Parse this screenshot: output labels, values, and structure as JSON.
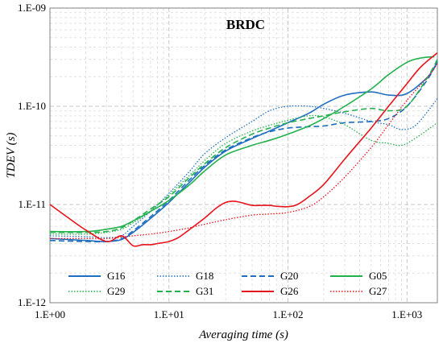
{
  "chart_data": {
    "type": "line",
    "title": "BRDC",
    "xlabel": "Averaging time (s)",
    "ylabel": "TDEV (s)",
    "xscale": "log",
    "yscale": "log",
    "xlim": [
      1,
      1800
    ],
    "ylim": [
      1e-12,
      1e-09
    ],
    "xticks": [
      {
        "value": 1,
        "label": "1.E+00"
      },
      {
        "value": 10,
        "label": "1.E+01"
      },
      {
        "value": 100,
        "label": "1.E+02"
      },
      {
        "value": 1000,
        "label": "1.E+03"
      }
    ],
    "yticks": [
      {
        "value": 1e-12,
        "label": "1.E-12"
      },
      {
        "value": 1e-11,
        "label": "1.E-11"
      },
      {
        "value": 1e-10,
        "label": "1.E-10"
      },
      {
        "value": 1e-09,
        "label": "1.E-09"
      }
    ],
    "grid": true,
    "legend_position": "bottom, inside plot",
    "series": [
      {
        "name": "G16",
        "color": "#1f6fc0",
        "dash": "solid",
        "x": [
          1,
          2,
          3,
          4,
          5,
          7,
          10,
          15,
          20,
          30,
          50,
          70,
          100,
          150,
          200,
          300,
          500,
          700,
          1000,
          1500,
          1800
        ],
        "y": [
          4.5e-12,
          4.3e-12,
          4.2e-12,
          4.4e-12,
          5.2e-12,
          7.2e-12,
          1.05e-11,
          1.7e-11,
          2.4e-11,
          3.5e-11,
          4.7e-11,
          5.6e-11,
          6.8e-11,
          8.5e-11,
          1.05e-10,
          1.3e-10,
          1.4e-10,
          1.3e-10,
          1.35e-10,
          2e-10,
          2.8e-10
        ]
      },
      {
        "name": "G18",
        "color": "#1f6fc0",
        "dash": "dotted",
        "x": [
          1,
          2,
          3,
          4,
          5,
          7,
          10,
          15,
          20,
          30,
          50,
          70,
          100,
          150,
          200,
          300,
          500,
          700,
          900,
          1200,
          1800
        ],
        "y": [
          4.8e-12,
          4.7e-12,
          4.6e-12,
          4.8e-12,
          6e-12,
          8.5e-12,
          1.3e-11,
          2.2e-11,
          3.3e-11,
          4.8e-11,
          7e-11,
          9e-11,
          1e-10,
          1e-10,
          9.5e-11,
          8.5e-11,
          7e-11,
          6.5e-11,
          5.8e-11,
          6.5e-11,
          1.2e-10
        ]
      },
      {
        "name": "G20",
        "color": "#1f6fc0",
        "dash": "dashed",
        "x": [
          1,
          2,
          3,
          4,
          5,
          7,
          10,
          15,
          20,
          30,
          50,
          70,
          100,
          150,
          200,
          300,
          500,
          700,
          1000,
          1500,
          1800
        ],
        "y": [
          4.3e-12,
          4.2e-12,
          4.2e-12,
          4.5e-12,
          5.4e-12,
          7.5e-12,
          1.1e-11,
          1.8e-11,
          2.5e-11,
          3.6e-11,
          4.8e-11,
          5.5e-11,
          6e-11,
          6.2e-11,
          6.3e-11,
          6.8e-11,
          7e-11,
          7.5e-11,
          1e-10,
          1.9e-10,
          2.9e-10
        ]
      },
      {
        "name": "G05",
        "color": "#22b14c",
        "dash": "solid",
        "x": [
          1,
          2,
          3,
          4,
          5,
          7,
          10,
          15,
          20,
          30,
          50,
          70,
          100,
          150,
          200,
          300,
          500,
          700,
          1000,
          1300,
          1700
        ],
        "y": [
          5.3e-12,
          5.3e-12,
          5.6e-12,
          6e-12,
          6.8e-12,
          8.5e-12,
          1.1e-11,
          1.6e-11,
          2.2e-11,
          3.2e-11,
          4e-11,
          4.5e-11,
          5.2e-11,
          6.3e-11,
          7.5e-11,
          1e-10,
          1.5e-10,
          2.1e-10,
          2.8e-10,
          3.1e-10,
          3.2e-10
        ]
      },
      {
        "name": "G29",
        "color": "#22b14c",
        "dash": "dotted",
        "x": [
          1,
          2,
          3,
          4,
          5,
          7,
          10,
          15,
          20,
          30,
          50,
          70,
          100,
          150,
          200,
          300,
          500,
          700,
          900,
          1200,
          1800
        ],
        "y": [
          5e-12,
          5e-12,
          5.2e-12,
          5.6e-12,
          6.5e-12,
          8.6e-12,
          1.25e-11,
          2e-11,
          2.8e-11,
          4.2e-11,
          5.6e-11,
          6.4e-11,
          7.2e-11,
          8e-11,
          7.8e-11,
          6.5e-11,
          4.5e-11,
          4.2e-11,
          4e-11,
          4.8e-11,
          6.8e-11
        ]
      },
      {
        "name": "G31",
        "color": "#22b14c",
        "dash": "dashed",
        "x": [
          1,
          2,
          3,
          4,
          5,
          7,
          10,
          15,
          20,
          30,
          50,
          70,
          100,
          150,
          200,
          300,
          500,
          700,
          1000,
          1500,
          1800
        ],
        "y": [
          5.2e-12,
          5.2e-12,
          5.3e-12,
          5.8e-12,
          6.8e-12,
          9e-12,
          1.2e-11,
          1.9e-11,
          2.6e-11,
          3.8e-11,
          5.2e-11,
          6e-11,
          6.8e-11,
          7.5e-11,
          8e-11,
          8.8e-11,
          9.5e-11,
          9e-11,
          1e-10,
          2e-10,
          3e-10
        ]
      },
      {
        "name": "G26",
        "color": "#e8141c",
        "dash": "solid",
        "x": [
          1,
          1.5,
          2,
          3,
          4,
          5,
          6,
          7,
          8,
          10,
          12,
          15,
          20,
          25,
          30,
          35,
          40,
          50,
          60,
          70,
          80,
          100,
          120,
          150,
          200,
          300,
          500,
          700,
          1000,
          1300,
          1800
        ],
        "y": [
          1e-11,
          7e-12,
          5.5e-12,
          4.2e-12,
          4.8e-12,
          3.8e-12,
          3.9e-12,
          3.9e-12,
          4e-12,
          4.2e-12,
          4.6e-12,
          5.6e-12,
          7.3e-12,
          9.2e-12,
          1.05e-11,
          1.08e-11,
          1.05e-11,
          9.8e-12,
          9.8e-12,
          9.8e-12,
          9.6e-12,
          9.5e-12,
          1e-11,
          1.2e-11,
          1.6e-11,
          2.9e-11,
          6e-11,
          1e-10,
          1.7e-10,
          2.5e-10,
          3.5e-10
        ]
      },
      {
        "name": "G27",
        "color": "#e8141c",
        "dash": "dotted",
        "x": [
          1,
          2,
          3,
          5,
          7,
          10,
          15,
          20,
          30,
          50,
          70,
          100,
          150,
          200,
          300,
          500,
          700,
          1000,
          1500,
          1800
        ],
        "y": [
          4.5e-12,
          4.5e-12,
          4.5e-12,
          4.8e-12,
          5e-12,
          5.3e-12,
          5.8e-12,
          6.3e-12,
          7e-12,
          7.8e-12,
          8e-12,
          8.3e-12,
          9.5e-12,
          1.2e-11,
          1.9e-11,
          3.8e-11,
          6.5e-11,
          1.15e-10,
          2e-10,
          2.7e-10
        ]
      }
    ]
  }
}
